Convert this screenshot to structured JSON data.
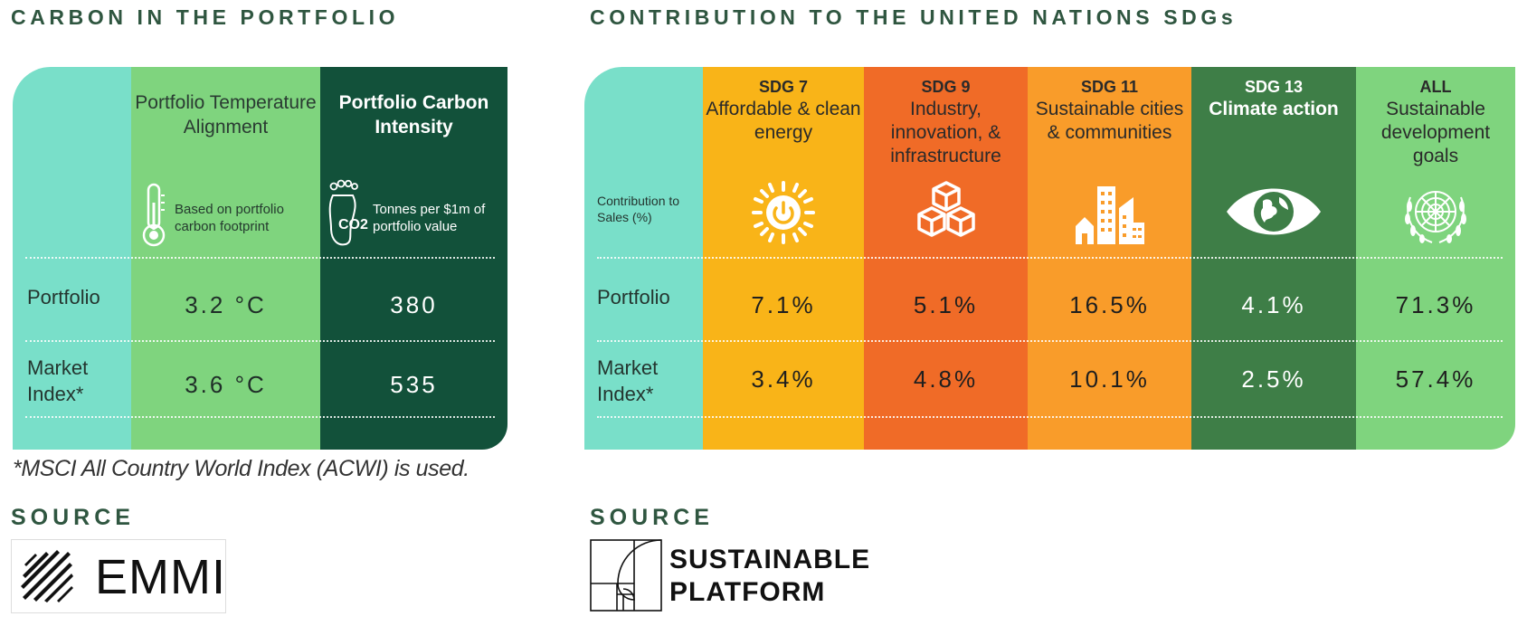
{
  "carbon": {
    "title": "CARBON IN THE PORTFOLIO",
    "col_temp_title": "Portfolio Temperature Alignment",
    "col_temp_note": "Based on portfolio carbon footprint",
    "col_intensity_title": "Portfolio Carbon Intensity",
    "col_intensity_note": "Tonnes per $1m of portfolio value",
    "co2_label": "CO2",
    "rows": [
      {
        "label": "Portfolio",
        "temp": "3.2 °C",
        "intensity": "380"
      },
      {
        "label": "Market Index*",
        "temp": "3.6 °C",
        "intensity": "535"
      }
    ],
    "footnote": "*MSCI All Country World Index (ACWI) is used.",
    "source_title": "SOURCE",
    "source_logo": "EMMI"
  },
  "sdg": {
    "title": "CONTRIBUTION TO THE UNITED NATIONS SDGs",
    "contribution_label": "Contribution to Sales (%)",
    "row_labels": [
      "Portfolio",
      "Market Index*"
    ],
    "columns": [
      {
        "code": "SDG 7",
        "name": "Affordable & clean energy",
        "icon": "sun-power-icon",
        "color": "#f9b418",
        "portfolio": "7.1%",
        "market": "3.4%"
      },
      {
        "code": "SDG 9",
        "name": "Industry, innovation, & infrastructure",
        "icon": "cubes-icon",
        "color": "#f06b27",
        "portfolio": "5.1%",
        "market": "4.8%"
      },
      {
        "code": "SDG 11",
        "name": "Sustainable cities & communities",
        "icon": "city-icon",
        "color": "#f99c2a",
        "portfolio": "16.5%",
        "market": "10.1%"
      },
      {
        "code": "SDG 13",
        "name": "Climate action",
        "icon": "eye-globe-icon",
        "color": "#3e7e47",
        "portfolio": "4.1%",
        "market": "2.5%"
      },
      {
        "code": "ALL",
        "name": "Sustainable development goals",
        "icon": "un-emblem-icon",
        "color": "#7fd47e",
        "portfolio": "71.3%",
        "market": "57.4%"
      }
    ],
    "source_title": "SOURCE",
    "source_logo_line1": "SUSTAINABLE",
    "source_logo_line2": "PLATFORM"
  },
  "colors": {
    "mint": "#79dfc9",
    "light_green": "#7fd47e",
    "dark_green": "#12513a",
    "heading": "#2f5640"
  }
}
